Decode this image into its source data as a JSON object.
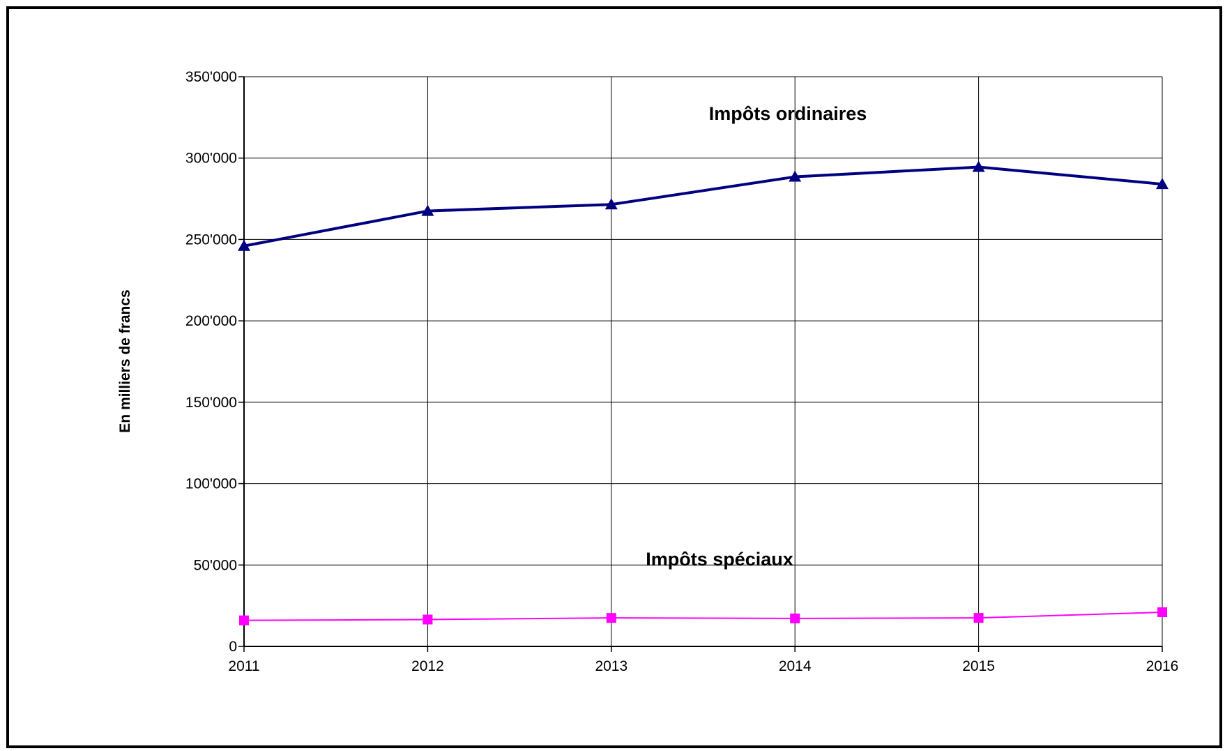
{
  "chart_data": {
    "type": "line",
    "title": "",
    "xlabel": "",
    "ylabel": "En milliers de francs",
    "categories": [
      "2011",
      "2012",
      "2013",
      "2014",
      "2015",
      "2016"
    ],
    "ylim": [
      0,
      350000
    ],
    "yticks": [
      0,
      50000,
      100000,
      150000,
      200000,
      250000,
      300000,
      350000
    ],
    "ytick_labels": [
      "0",
      "50'000",
      "100'000",
      "150'000",
      "200'000",
      "250'000",
      "300'000",
      "350'000"
    ],
    "grid": true,
    "legend": "none",
    "series": [
      {
        "name": "Impôts ordinaires",
        "color": "#000080",
        "marker": "triangle",
        "values": [
          246000,
          267500,
          271500,
          288500,
          294500,
          284000
        ]
      },
      {
        "name": "Impôts spéciaux",
        "color": "#ff00ff",
        "marker": "square",
        "values": [
          16000,
          16500,
          17500,
          17200,
          17500,
          21000
        ]
      }
    ]
  }
}
